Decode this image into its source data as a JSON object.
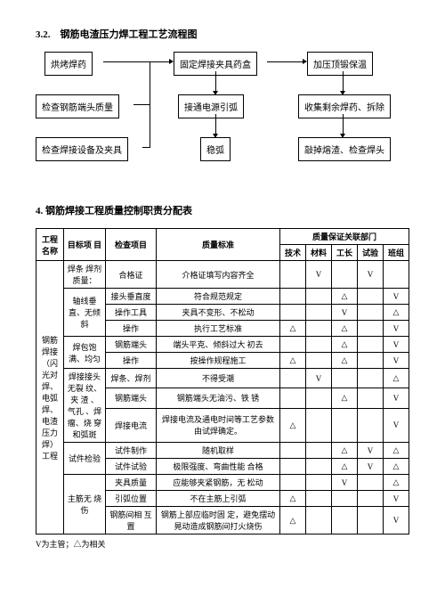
{
  "section1_title": "3.2.　钢筋电渣压力焊工程工艺流程图",
  "flow": {
    "b1": "烘烤焊药",
    "b2": "检查钢筋端头质量",
    "b3": "检查焊接设备及夹具",
    "b4": "固定焊接夹具药盒",
    "b5": "接通电源引弧",
    "b6": "稳弧",
    "b7": "加压顶锻保温",
    "b8": "收集剩余焊药、拆除",
    "b9": "敲掉熔渣、检查焊头"
  },
  "section2_title": "4. 钢筋焊接工程质量控制职责分配表",
  "table": {
    "head": {
      "c1": "工程 名称",
      "c2": "目标项 目",
      "c3": "检查项目",
      "c4": "质量标准",
      "c5": "质量保证关联部门",
      "s1": "技术",
      "s2": "材料",
      "s3": "工长",
      "s4": "试验",
      "s5": "班组"
    },
    "proj_name": "钢筋 焊接（闪光对焊、电弧焊、电渣压力焊）工程",
    "rows": [
      {
        "t": "焊条 焊剂质量：",
        "c": "合格证",
        "s": "介格证填写内容齐全",
        "v": [
          "",
          "V",
          "",
          "V",
          ""
        ]
      },
      {
        "t_rs": 3,
        "t": "轴线垂直、无倾斜",
        "c": "接头垂直度",
        "s": "符合规范规定",
        "v": [
          "",
          "",
          "△",
          "",
          "V"
        ]
      },
      {
        "c": "操作工具",
        "s": "夹具不变形、不松动",
        "v": [
          "",
          "",
          "V",
          "",
          "△"
        ]
      },
      {
        "c": "操作",
        "s": "执行工艺标准",
        "v": [
          "△",
          "",
          "△",
          "",
          "V"
        ]
      },
      {
        "t_rs": 2,
        "t": "焊包饱满、均匀",
        "c": "钢筋端头",
        "s": "端头平克、倾斜过大 初去",
        "v": [
          "",
          "",
          "△",
          "",
          "V"
        ]
      },
      {
        "c": "操作",
        "s": "按操作规程施工",
        "v": [
          "△",
          "",
          "△",
          "",
          "V"
        ]
      },
      {
        "t_rs": 3,
        "t": "焊接接头无裂 纹、夹 渣 、气孔 、焊瘤、烧 穿和弧斑",
        "c": "焊条、焊剂",
        "s": "不得受潮",
        "v": [
          "",
          "V",
          "",
          "",
          "△"
        ]
      },
      {
        "c": "钢筋端头",
        "s": "钢筋端头无油污、铁 锈",
        "v": [
          "",
          "",
          "△",
          "",
          "V"
        ]
      },
      {
        "c": "焊接电流",
        "s": "焊接电流及通电时间等工艺参数由试焊确定。",
        "v": [
          "△",
          "",
          "",
          "",
          "V"
        ]
      },
      {
        "t_rs": 2,
        "t": "试件检验",
        "c": "试件制作",
        "s": "随机取样",
        "v": [
          "",
          "",
          "△",
          "V",
          "△"
        ]
      },
      {
        "c": "试件试验",
        "s": "极限强度、弯曲性能 合格",
        "v": [
          "",
          "",
          "△",
          "V",
          "△"
        ]
      },
      {
        "t_rs": 3,
        "t": "主筋无 烧伤",
        "c": "夹具质量",
        "s": "应能够夹紧钢筋，无 松动",
        "v": [
          "",
          "",
          "V",
          "",
          "△"
        ]
      },
      {
        "c": "引弧位置",
        "s": "不在主筋上引弧",
        "v": [
          "△",
          "",
          "",
          "",
          "V"
        ]
      },
      {
        "c": "钢筋间相 互置",
        "s": "钢筋上部应临时固 定，避免摆动晃动造成钢筋间打火烧伤",
        "v": [
          "△",
          "",
          "",
          "",
          "V"
        ]
      }
    ]
  },
  "legend": "V为主管；△为相关"
}
